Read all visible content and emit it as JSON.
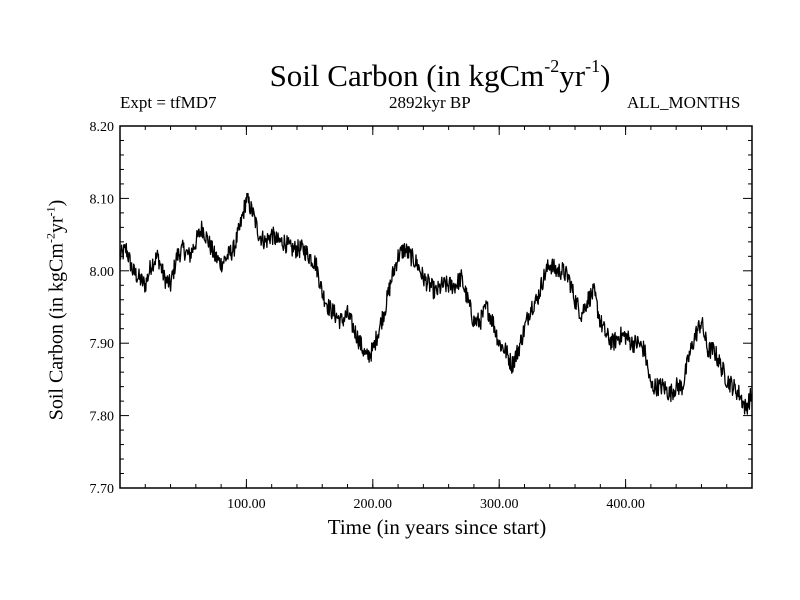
{
  "header": {
    "title_base": "Soil Carbon (in kgCm",
    "title_exp1": "-2",
    "title_mid": "yr",
    "title_exp2": "-1",
    "title_end": ")",
    "expt": "Expt = tfMD7",
    "period": "2892kyr BP",
    "months": "ALL_MONTHS"
  },
  "axes": {
    "ylabel_base": "Soil Carbon (in kgCm",
    "ylabel_exp1": "-2",
    "ylabel_mid": "yr",
    "ylabel_exp2": "-1",
    "ylabel_end": ")"
  },
  "chart_data": {
    "type": "line",
    "title": "Soil Carbon (in kgCm-2yr-1)",
    "xlabel": "Time (in years since start)",
    "ylabel": "Soil Carbon (in kgCm-2yr-1)",
    "xlim": [
      0,
      500
    ],
    "ylim": [
      7.7,
      8.2
    ],
    "x_ticks": [
      100,
      200,
      300,
      400
    ],
    "x_tick_labels": [
      "100.00",
      "200.00",
      "300.00",
      "400.00"
    ],
    "y_ticks": [
      7.7,
      7.8,
      7.9,
      8.0,
      8.1,
      8.2
    ],
    "y_tick_labels": [
      "7.70",
      "7.80",
      "7.90",
      "8.00",
      "8.10",
      "8.20"
    ],
    "series": [
      {
        "name": "Soil Carbon",
        "color": "#000000",
        "x": [
          0,
          5,
          10,
          15,
          20,
          25,
          30,
          35,
          40,
          45,
          50,
          55,
          60,
          65,
          70,
          75,
          80,
          85,
          90,
          95,
          100,
          105,
          110,
          115,
          120,
          125,
          130,
          135,
          140,
          145,
          150,
          155,
          160,
          165,
          170,
          175,
          180,
          185,
          190,
          195,
          200,
          205,
          210,
          215,
          220,
          225,
          230,
          235,
          240,
          245,
          250,
          255,
          260,
          265,
          270,
          275,
          280,
          285,
          290,
          295,
          300,
          305,
          310,
          315,
          320,
          325,
          330,
          335,
          340,
          345,
          350,
          355,
          360,
          365,
          370,
          375,
          380,
          385,
          390,
          395,
          400,
          405,
          410,
          415,
          420,
          425,
          430,
          435,
          440,
          445,
          450,
          455,
          460,
          465,
          470,
          475,
          480,
          485,
          490,
          495,
          500
        ],
        "values": [
          8.02,
          8.03,
          8.0,
          7.99,
          7.98,
          8.01,
          8.02,
          7.99,
          7.98,
          8.02,
          8.03,
          8.02,
          8.04,
          8.06,
          8.04,
          8.02,
          8.01,
          8.02,
          8.03,
          8.06,
          8.1,
          8.08,
          8.05,
          8.04,
          8.05,
          8.04,
          8.04,
          8.03,
          8.03,
          8.03,
          8.02,
          8.01,
          7.97,
          7.95,
          7.94,
          7.93,
          7.94,
          7.92,
          7.9,
          7.88,
          7.89,
          7.92,
          7.95,
          7.99,
          8.02,
          8.03,
          8.02,
          8.01,
          7.99,
          7.98,
          7.97,
          7.98,
          7.98,
          7.98,
          7.99,
          7.96,
          7.93,
          7.93,
          7.95,
          7.93,
          7.9,
          7.89,
          7.87,
          7.89,
          7.92,
          7.95,
          7.96,
          7.99,
          8.01,
          8.0,
          8.0,
          7.99,
          7.96,
          7.94,
          7.96,
          7.97,
          7.93,
          7.91,
          7.9,
          7.91,
          7.91,
          7.9,
          7.9,
          7.89,
          7.84,
          7.84,
          7.84,
          7.83,
          7.84,
          7.84,
          7.88,
          7.91,
          7.93,
          7.89,
          7.89,
          7.87,
          7.85,
          7.84,
          7.83,
          7.81,
          7.83
        ]
      }
    ]
  }
}
